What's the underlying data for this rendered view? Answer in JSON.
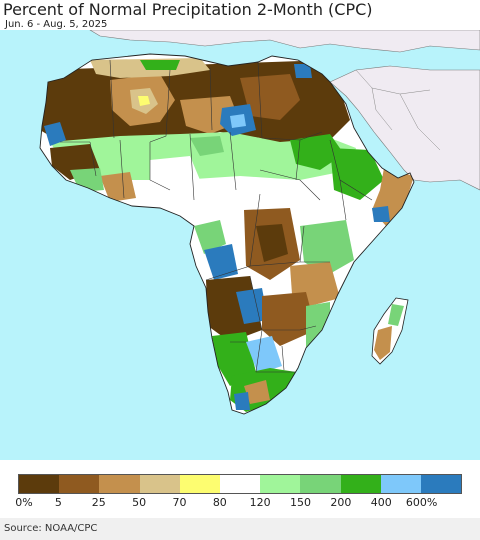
{
  "title": "Percent of Normal Precipitation 2-Month (CPC)",
  "subtitle": "Jun. 6 - Aug. 5, 2025",
  "source": "Source: NOAA/CPC",
  "colors": {
    "ocean": "#b8f3fb",
    "land_outside": "#f0ebf2",
    "border": "#333333"
  },
  "legend": {
    "colors": [
      "#5c3b0c",
      "#8f5a20",
      "#c4904d",
      "#d9c38a",
      "#fdfd70",
      "#ffffff",
      "#a0f59a",
      "#78d478",
      "#33b01a",
      "#7ec8fa",
      "#2b7bbd"
    ],
    "labels": [
      "0%",
      "5",
      "25",
      "50",
      "70",
      "80",
      "120",
      "150",
      "200",
      "400",
      "600%"
    ]
  }
}
